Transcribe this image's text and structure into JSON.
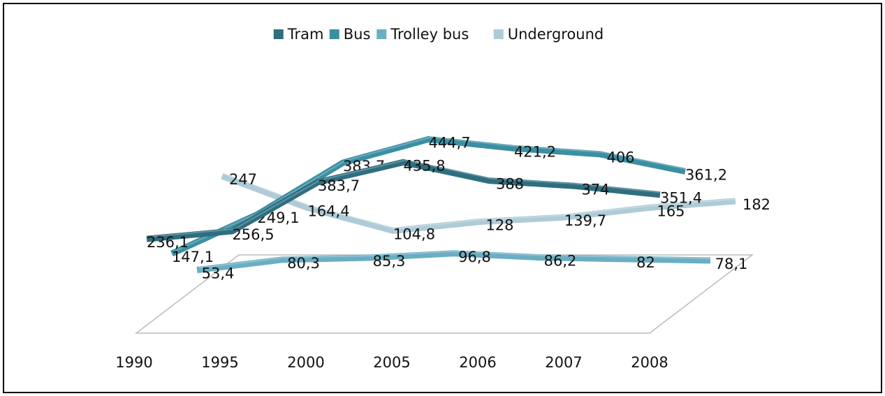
{
  "chart_data": {
    "type": "line3d",
    "categories": [
      "1990",
      "1995",
      "2000",
      "2005",
      "2006",
      "2007",
      "2008"
    ],
    "series": [
      {
        "name": "Tram",
        "color": "#2e6e7f",
        "values": [
          236.1,
          256.5,
          383.7,
          435.8,
          388,
          374,
          351.4
        ],
        "value_labels": [
          "236,1",
          "256,5",
          "383,7",
          "435,8",
          "388",
          "374",
          "351,4"
        ]
      },
      {
        "name": "Bus",
        "color": "#3b8fa3",
        "values": [
          147.1,
          249.1,
          383.7,
          444.7,
          421.2,
          406,
          361.2
        ],
        "value_labels": [
          "147,1",
          "249,1",
          "383,7",
          "444,7",
          "421,2",
          "406",
          "361,2"
        ]
      },
      {
        "name": "Trolley bus",
        "color": "#6aaec2",
        "values": [
          53.4,
          80.3,
          85.3,
          96.8,
          86.2,
          82,
          78.1
        ],
        "value_labels": [
          "53,4",
          "80,3",
          "85,3",
          "96,8",
          "86,2",
          "82",
          "78,1"
        ]
      },
      {
        "name": "Underground",
        "color": "#aecbd6",
        "values": [
          247,
          164.4,
          104.8,
          128,
          139.7,
          165,
          182
        ],
        "value_labels": [
          "247",
          "164,4",
          "104,8",
          "128",
          "139,7",
          "165",
          "182"
        ]
      }
    ],
    "legend": "top"
  }
}
